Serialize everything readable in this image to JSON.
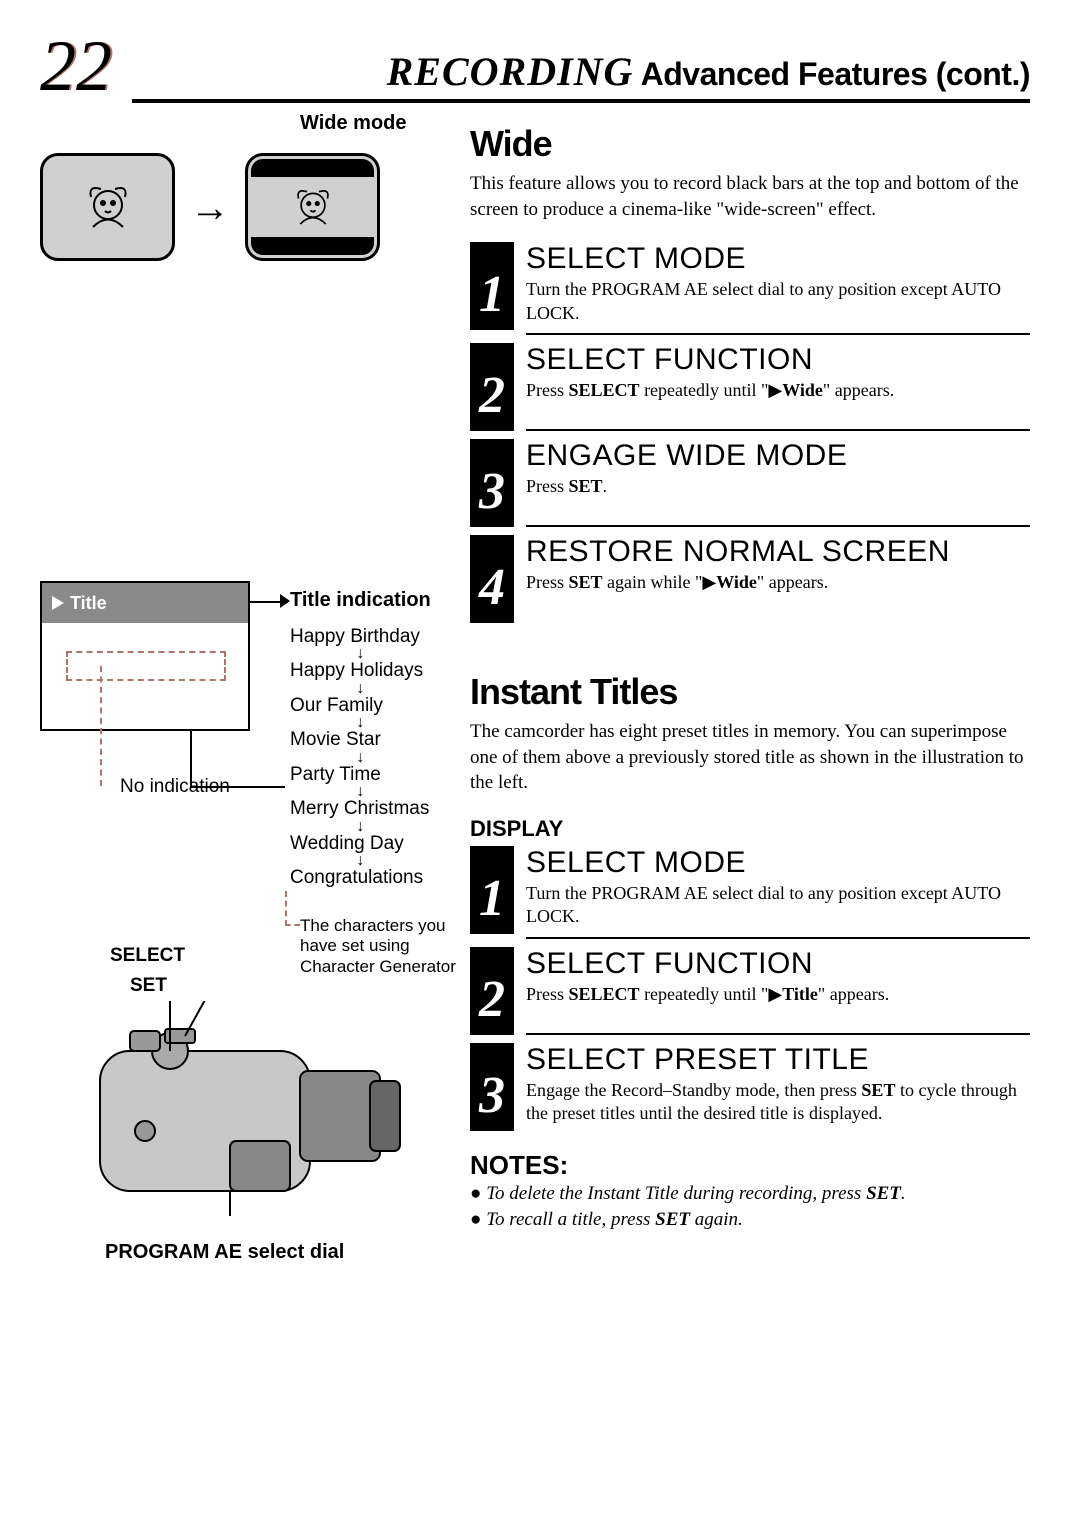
{
  "page_number": "22",
  "header": {
    "recording": "RECORDING",
    "rest": " Advanced Features (cont.)"
  },
  "wide": {
    "mode_label": "Wide mode",
    "title": "Wide",
    "body": "This feature allows you to record black bars at the top and bottom of the screen to produce a cinema-like \"wide-screen\" effect.",
    "steps": [
      {
        "n": "1",
        "head": "SELECT MODE",
        "body": "Turn the PROGRAM AE select dial to any position except AUTO LOCK."
      },
      {
        "n": "2",
        "head": "SELECT FUNCTION",
        "body": "Press <b>SELECT</b> repeatedly until \"▶<b>Wide</b>\" appears."
      },
      {
        "n": "3",
        "head": "ENGAGE WIDE MODE",
        "body": "Press <b>SET</b>."
      },
      {
        "n": "4",
        "head": "RESTORE NORMAL SCREEN",
        "body": "Press <b>SET</b> again while \"▶<b>Wide</b>\" appears."
      }
    ]
  },
  "titles": {
    "screen_label": "Title",
    "indication_label": "Title indication",
    "no_indication": "No indication",
    "list": [
      "Happy Birthday",
      "Happy Holidays",
      "Our Family",
      "Movie Star",
      "Party Time",
      "Merry Christmas",
      "Wedding Day",
      "Congratulations"
    ],
    "char_note": "The characters you have set using Character Generator",
    "select_label": "SELECT",
    "set_label": "SET",
    "prog_ae": "PROGRAM AE select dial",
    "title": "Instant Titles",
    "body": "The camcorder has eight preset titles in memory. You can superimpose one of them above a previously stored title as shown in the illustration to the left.",
    "display_head": "DISPLAY",
    "steps": [
      {
        "n": "1",
        "head": "SELECT MODE",
        "body": "Turn the PROGRAM AE select dial to any position except AUTO LOCK."
      },
      {
        "n": "2",
        "head": "SELECT FUNCTION",
        "body": "Press <b>SELECT</b> repeatedly until \"▶<b>Title</b>\" appears."
      },
      {
        "n": "3",
        "head": "SELECT PRESET TITLE",
        "body": "Engage the Record–Standby mode, then press <b>SET</b> to cycle through the preset titles until the desired title is displayed."
      }
    ],
    "notes_head": "NOTES:",
    "notes": [
      "To delete the Instant Title during recording, press <b>SET</b>.",
      "To recall a title, press <b>SET</b> again."
    ]
  },
  "colors": {
    "accent": "#b0756a",
    "grey": "#8a8a8a"
  }
}
